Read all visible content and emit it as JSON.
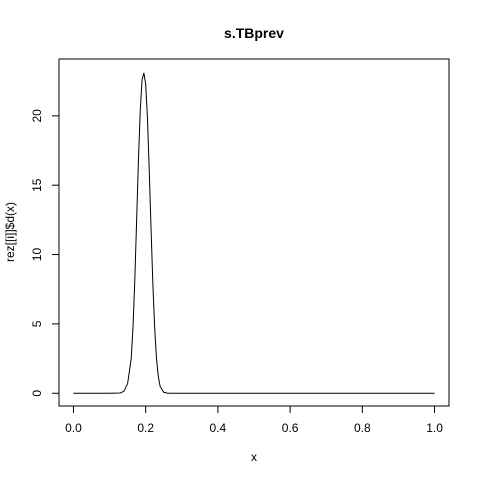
{
  "chart_data": {
    "type": "line",
    "title": "s.TBprev",
    "xlabel": "x",
    "ylabel": "rez[[i]]$d(x)",
    "xlim": [
      -0.04,
      1.04
    ],
    "ylim": [
      -0.92,
      24.1
    ],
    "x_ticks": [
      0,
      0.2,
      0.4,
      0.6,
      0.8,
      1
    ],
    "x_tick_labels": [
      "0.0",
      "0.2",
      "0.4",
      "0.6",
      "0.8",
      "1.0"
    ],
    "y_ticks": [
      0,
      5,
      10,
      15,
      20
    ],
    "y_tick_labels": [
      "0",
      "5",
      "10",
      "15",
      "20"
    ],
    "grid": false,
    "series": [
      {
        "x": [
          0,
          0.1,
          0.13,
          0.14,
          0.15,
          0.16,
          0.165,
          0.17,
          0.175,
          0.18,
          0.185,
          0.19,
          0.195,
          0.2,
          0.205,
          0.21,
          0.215,
          0.22,
          0.225,
          0.23,
          0.235,
          0.24,
          0.25,
          0.26,
          0.27,
          0.3,
          0.5,
          1.0
        ],
        "y": [
          0,
          0,
          0.02,
          0.15,
          0.7,
          2.5,
          4.8,
          8.2,
          12.5,
          16.8,
          20.4,
          22.6,
          23.1,
          22.3,
          19.8,
          16.0,
          11.8,
          7.8,
          4.7,
          2.5,
          1.2,
          0.5,
          0.07,
          0.01,
          0,
          0,
          0,
          0
        ],
        "color": "#000000"
      }
    ]
  }
}
